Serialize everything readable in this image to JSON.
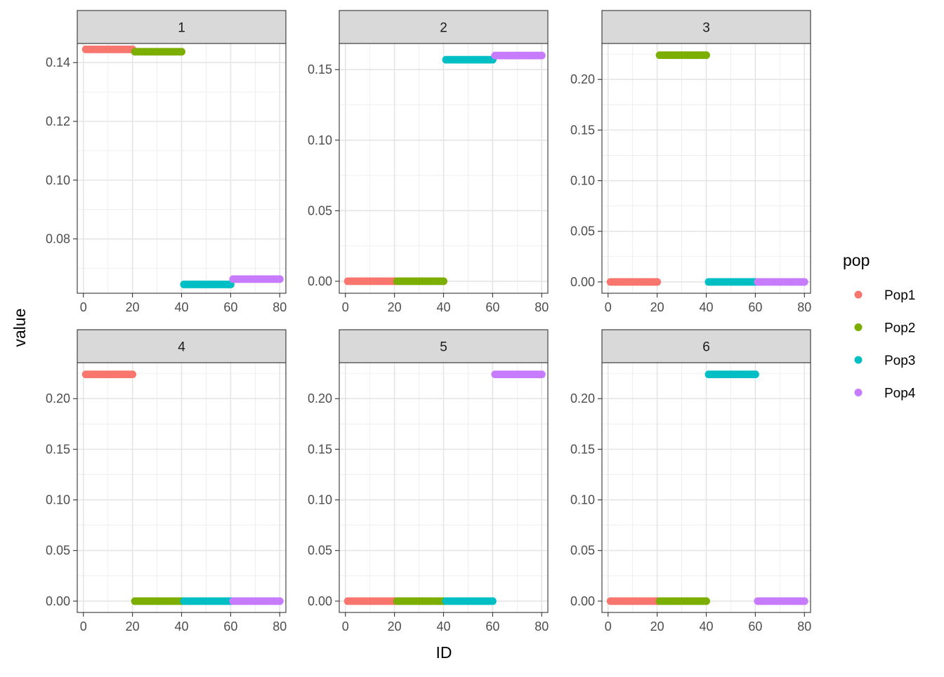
{
  "chart_data": {
    "type": "scatter",
    "facet_layout": "2x3 grid",
    "xlabel": "ID",
    "ylabel": "value",
    "legend": {
      "title": "pop",
      "position": "right",
      "entries": [
        {
          "name": "Pop1",
          "color": "#F8766D"
        },
        {
          "name": "Pop2",
          "color": "#7CAE00"
        },
        {
          "name": "Pop3",
          "color": "#00BFC4"
        },
        {
          "name": "Pop4",
          "color": "#C77CFF"
        }
      ]
    },
    "x_ticks": [
      0,
      20,
      40,
      60,
      80
    ],
    "x_tick_labels": [
      "0",
      "20",
      "40",
      "60",
      "80"
    ],
    "xlim": [
      -2.5,
      82.5
    ],
    "panels": [
      {
        "label": "1",
        "ylim": [
          0.0615,
          0.1465
        ],
        "y_ticks": [
          0.08,
          0.1,
          0.12,
          0.14
        ],
        "y_tick_labels": [
          "0.08",
          "0.10",
          "0.12",
          "0.14"
        ],
        "series": [
          {
            "name": "Pop1",
            "x_range": [
              1,
              20
            ],
            "value": 0.1445
          },
          {
            "name": "Pop2",
            "x_range": [
              21,
              40
            ],
            "value": 0.1437
          },
          {
            "name": "Pop3",
            "x_range": [
              41,
              60
            ],
            "value": 0.0645
          },
          {
            "name": "Pop4",
            "x_range": [
              61,
              80
            ],
            "value": 0.0663
          }
        ]
      },
      {
        "label": "2",
        "ylim": [
          -0.0085,
          0.1685
        ],
        "y_ticks": [
          0.0,
          0.05,
          0.1,
          0.15
        ],
        "y_tick_labels": [
          "0.00",
          "0.05",
          "0.10",
          "0.15"
        ],
        "series": [
          {
            "name": "Pop1",
            "x_range": [
              1,
              20
            ],
            "value": 0.0
          },
          {
            "name": "Pop2",
            "x_range": [
              21,
              40
            ],
            "value": 0.0
          },
          {
            "name": "Pop3",
            "x_range": [
              41,
              60
            ],
            "value": 0.157
          },
          {
            "name": "Pop4",
            "x_range": [
              61,
              80
            ],
            "value": 0.16
          }
        ]
      },
      {
        "label": "3",
        "ylim": [
          -0.0112,
          0.2355
        ],
        "y_ticks": [
          0.0,
          0.05,
          0.1,
          0.15,
          0.2
        ],
        "y_tick_labels": [
          "0.00",
          "0.05",
          "0.10",
          "0.15",
          "0.20"
        ],
        "series": [
          {
            "name": "Pop1",
            "x_range": [
              1,
              20
            ],
            "value": 0.0
          },
          {
            "name": "Pop2",
            "x_range": [
              21,
              40
            ],
            "value": 0.224
          },
          {
            "name": "Pop3",
            "x_range": [
              41,
              60
            ],
            "value": 0.0
          },
          {
            "name": "Pop4",
            "x_range": [
              61,
              80
            ],
            "value": 0.0
          }
        ]
      },
      {
        "label": "4",
        "ylim": [
          -0.0112,
          0.2355
        ],
        "y_ticks": [
          0.0,
          0.05,
          0.1,
          0.15,
          0.2
        ],
        "y_tick_labels": [
          "0.00",
          "0.05",
          "0.10",
          "0.15",
          "0.20"
        ],
        "series": [
          {
            "name": "Pop1",
            "x_range": [
              1,
              20
            ],
            "value": 0.224
          },
          {
            "name": "Pop2",
            "x_range": [
              21,
              40
            ],
            "value": 0.0
          },
          {
            "name": "Pop3",
            "x_range": [
              41,
              60
            ],
            "value": 0.0
          },
          {
            "name": "Pop4",
            "x_range": [
              61,
              80
            ],
            "value": 0.0
          }
        ]
      },
      {
        "label": "5",
        "ylim": [
          -0.0112,
          0.2355
        ],
        "y_ticks": [
          0.0,
          0.05,
          0.1,
          0.15,
          0.2
        ],
        "y_tick_labels": [
          "0.00",
          "0.05",
          "0.10",
          "0.15",
          "0.20"
        ],
        "series": [
          {
            "name": "Pop1",
            "x_range": [
              1,
              20
            ],
            "value": 0.0
          },
          {
            "name": "Pop2",
            "x_range": [
              21,
              40
            ],
            "value": 0.0
          },
          {
            "name": "Pop3",
            "x_range": [
              41,
              60
            ],
            "value": 0.0
          },
          {
            "name": "Pop4",
            "x_range": [
              61,
              80
            ],
            "value": 0.224
          }
        ]
      },
      {
        "label": "6",
        "ylim": [
          -0.0112,
          0.2355
        ],
        "y_ticks": [
          0.0,
          0.05,
          0.1,
          0.15,
          0.2
        ],
        "y_tick_labels": [
          "0.00",
          "0.05",
          "0.10",
          "0.15",
          "0.20"
        ],
        "series": [
          {
            "name": "Pop1",
            "x_range": [
              1,
              20
            ],
            "value": 0.0
          },
          {
            "name": "Pop2",
            "x_range": [
              21,
              40
            ],
            "value": 0.0
          },
          {
            "name": "Pop3",
            "x_range": [
              41,
              60
            ],
            "value": 0.224
          },
          {
            "name": "Pop4",
            "x_range": [
              61,
              80
            ],
            "value": 0.0
          }
        ]
      }
    ]
  }
}
